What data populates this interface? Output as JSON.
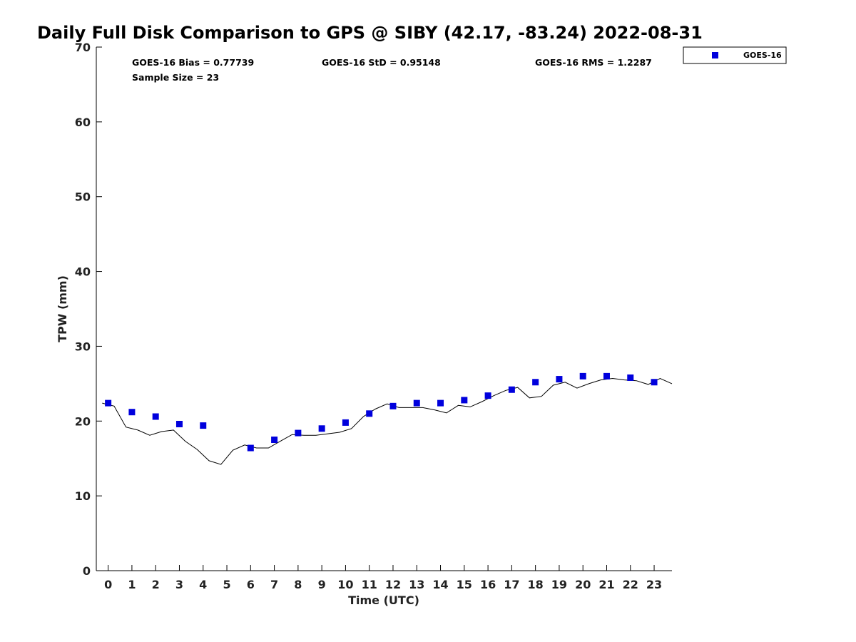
{
  "chart_data": {
    "type": "scatter",
    "title": "Daily Full Disk Comparison to GPS @ SIBY (42.17, -83.24) 2022-08-31",
    "xlabel": "Time (UTC)",
    "ylabel": "TPW (mm)",
    "xlim": [
      -0.5,
      23.75
    ],
    "ylim": [
      0,
      70
    ],
    "xticks": [
      "0",
      "1",
      "2",
      "3",
      "4",
      "5",
      "6",
      "7",
      "8",
      "9",
      "10",
      "11",
      "12",
      "13",
      "14",
      "15",
      "16",
      "17",
      "18",
      "19",
      "20",
      "21",
      "22",
      "23"
    ],
    "yticks": [
      "0",
      "10",
      "20",
      "30",
      "40",
      "50",
      "60",
      "70"
    ],
    "grid": false,
    "legend_position": "top-right (outside plot)",
    "stats": {
      "bias": "GOES-16 Bias = 0.77739",
      "std": "GOES-16 StD = 0.95148",
      "rms": "GOES-16 RMS = 1.2287",
      "sample_size": "Sample Size = 23"
    },
    "series": [
      {
        "name": "GOES-16",
        "kind": "scatter",
        "marker": "square",
        "color": "#0000dd",
        "x": [
          0,
          1,
          2,
          3,
          4,
          6,
          7,
          8,
          9,
          10,
          11,
          12,
          13,
          14,
          15,
          16,
          17,
          18,
          19,
          20,
          21,
          22,
          23
        ],
        "y": [
          22.4,
          21.2,
          20.6,
          19.6,
          19.4,
          16.4,
          17.5,
          18.4,
          19.0,
          19.8,
          21.0,
          22.0,
          22.4,
          22.4,
          22.8,
          23.4,
          24.2,
          25.2,
          25.6,
          26.0,
          26.0,
          25.8,
          25.2
        ]
      },
      {
        "kind": "line",
        "color": "#000000",
        "x": [
          -0.25,
          0.25,
          0.75,
          1.25,
          1.75,
          2.25,
          2.75,
          3.25,
          3.75,
          4.25,
          4.75,
          5.25,
          5.75,
          6.25,
          6.75,
          7.25,
          7.75,
          8.25,
          8.75,
          9.25,
          9.75,
          10.25,
          10.75,
          11.25,
          11.75,
          12.25,
          12.75,
          13.25,
          13.75,
          14.25,
          14.75,
          15.25,
          15.75,
          16.25,
          16.75,
          17.25,
          17.75,
          18.25,
          18.75,
          19.25,
          19.75,
          20.25,
          20.75,
          21.25,
          21.75,
          22.25,
          22.75,
          23.25,
          23.75
        ],
        "y": [
          22.4,
          22.0,
          19.2,
          18.8,
          18.1,
          18.6,
          18.8,
          17.3,
          16.2,
          14.7,
          14.2,
          16.1,
          16.8,
          16.4,
          16.4,
          17.3,
          18.2,
          18.1,
          18.1,
          18.3,
          18.5,
          19.0,
          20.6,
          21.6,
          22.3,
          21.8,
          21.8,
          21.8,
          21.5,
          21.1,
          22.1,
          21.9,
          22.6,
          23.4,
          24.1,
          24.5,
          23.1,
          23.3,
          24.8,
          25.2,
          24.4,
          25.0,
          25.5,
          25.7,
          25.5,
          25.4,
          24.9,
          25.7,
          25.0
        ]
      }
    ]
  }
}
